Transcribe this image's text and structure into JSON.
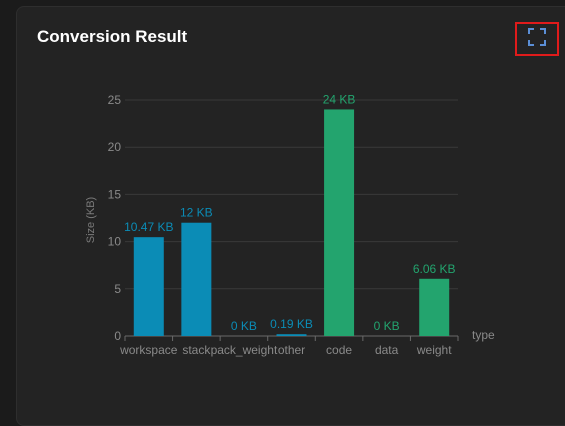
{
  "panel": {
    "title": "Conversion Result",
    "fullscreen_icon": "fullscreen-icon"
  },
  "colors": {
    "blue": "#0b8cb6",
    "green": "#23a46e",
    "axis_text": "#8a8a8a",
    "grid": "#3a3a3a"
  },
  "chart_data": {
    "type": "bar",
    "xlabel": "type",
    "ylabel": "Size (KB)",
    "ylim": [
      0,
      25
    ],
    "yticks": [
      0,
      5,
      10,
      15,
      20,
      25
    ],
    "grid": true,
    "categories": [
      "workspace",
      "stack",
      "pack_weight",
      "other",
      "code",
      "data",
      "weight"
    ],
    "values": [
      10.47,
      12,
      0,
      0.19,
      24,
      0,
      6.06
    ],
    "labels": [
      "10.47 KB",
      "12 KB",
      "0 KB",
      "0.19 KB",
      "24 KB",
      "0 KB",
      "6.06 KB"
    ],
    "bar_groups": [
      "blue",
      "blue",
      "blue",
      "blue",
      "green",
      "green",
      "green"
    ]
  }
}
